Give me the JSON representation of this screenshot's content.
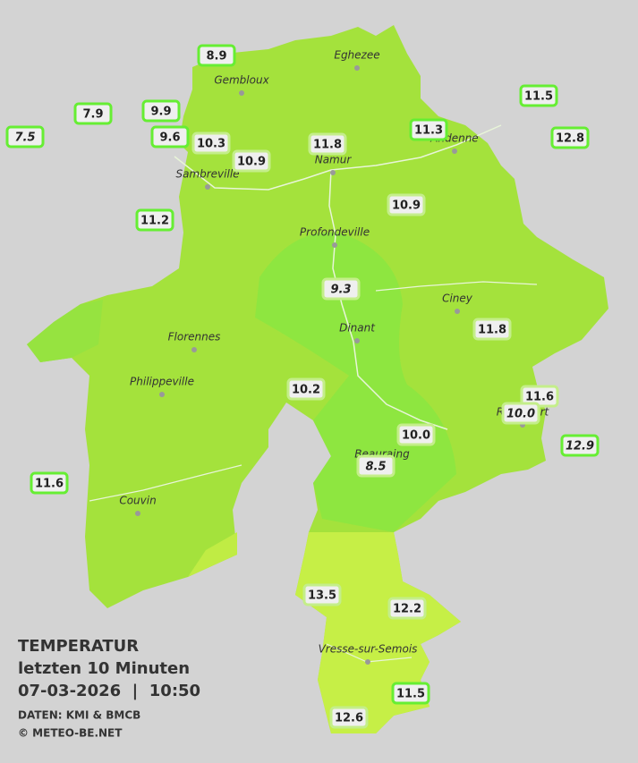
{
  "cities": [
    "Eghezee",
    "Gembloux",
    "Andenne",
    "Namur",
    "Sambreville",
    "Profondeville",
    "Ciney",
    "Dinant",
    "Florennes",
    "Philippeville",
    "Rochefort",
    "Beauraing",
    "Couvin",
    "Vresse-sur-Semois"
  ],
  "stations": [
    "8.9",
    "7.9",
    "9.9",
    "7.5",
    "9.6",
    "10.3",
    "10.9",
    "11.8",
    "11.3",
    "11.5",
    "12.8",
    "11.2",
    "10.9",
    "9.3",
    "11.8",
    "10.2",
    "11.6",
    "10.0",
    "12.9",
    "10.0",
    "8.5",
    "11.6",
    "13.5",
    "12.2",
    "11.5",
    "12.6"
  ],
  "legend": [
    "TEMPERATUR",
    "letzten 10 Minuten",
    "07-03-2026  |  10:50",
    "DATEN: KMI & BMCB",
    "© METEO-BE.NET"
  ]
}
